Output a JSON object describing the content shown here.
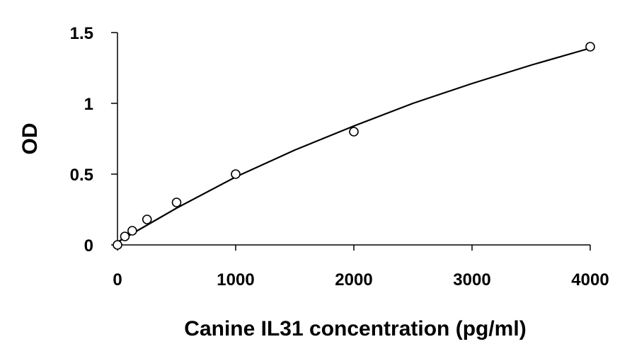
{
  "chart_data": {
    "type": "scatter",
    "title": "",
    "xlabel": "Canine IL31 concentration (pg/ml)",
    "ylabel": "OD",
    "xlim": [
      0,
      4000
    ],
    "ylim": [
      0,
      1.5
    ],
    "x_ticks": [
      0,
      1000,
      2000,
      3000,
      4000
    ],
    "x_tick_labels": [
      "0",
      "1000",
      "2000",
      "3000",
      "4000"
    ],
    "y_ticks": [
      0,
      0.5,
      1,
      1.5
    ],
    "y_tick_labels": [
      "0",
      "0.5",
      "1",
      "1.5"
    ],
    "grid": false,
    "legend": "none",
    "marker": "open-circle",
    "series": [
      {
        "x": [
          0,
          62.5,
          125,
          250,
          500,
          1000,
          2000,
          4000
        ],
        "y": [
          0,
          0.06,
          0.1,
          0.18,
          0.3,
          0.5,
          0.8,
          1.4
        ]
      }
    ],
    "fit_curve": {
      "x": [
        0,
        250,
        500,
        1000,
        1500,
        2000,
        2500,
        3000,
        3500,
        4000
      ],
      "y": [
        0.02,
        0.14,
        0.26,
        0.48,
        0.67,
        0.84,
        1.0,
        1.14,
        1.27,
        1.39
      ]
    },
    "colors": {
      "axis": "#000000",
      "marker_stroke": "#000000",
      "marker_fill": "#ffffff",
      "curve": "#000000"
    }
  }
}
